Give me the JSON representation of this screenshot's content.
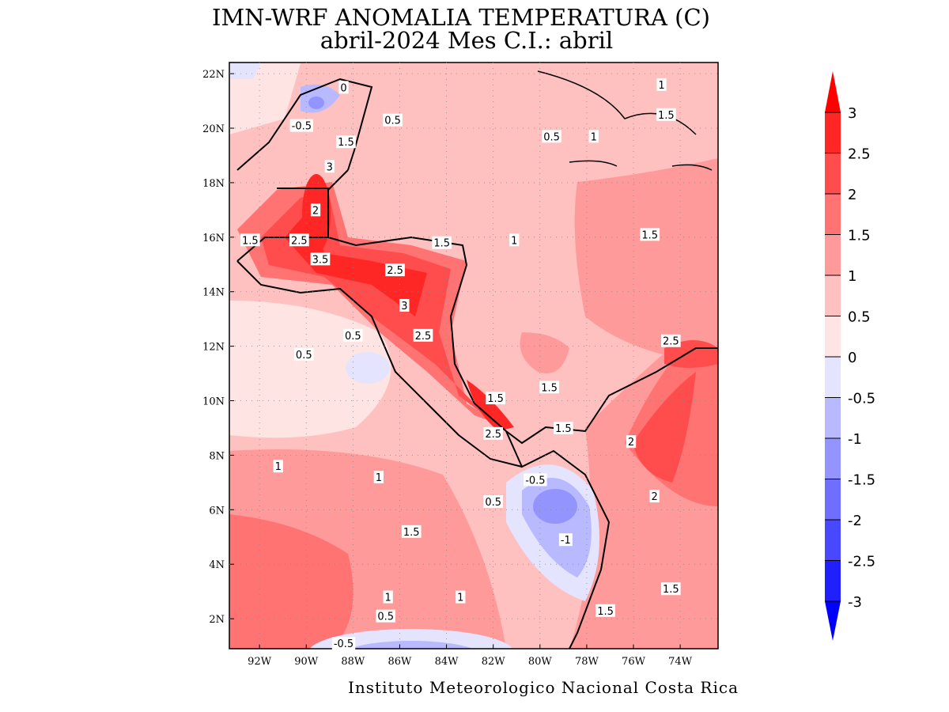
{
  "header": {
    "title": "IMN-WRF  ANOMALIA TEMPERATURA (C)",
    "subtitle": "abril-2024 Mes C.I.: abril"
  },
  "map": {
    "lonlim": [
      -93.29,
      -72.38
    ],
    "latlim": [
      0.9,
      22.41
    ],
    "lat_ticks": [
      {
        "value": 22,
        "label": "22N"
      },
      {
        "value": 20,
        "label": "20N"
      },
      {
        "value": 18,
        "label": "18N"
      },
      {
        "value": 16,
        "label": "16N"
      },
      {
        "value": 14,
        "label": "14N"
      },
      {
        "value": 12,
        "label": "12N"
      },
      {
        "value": 10,
        "label": "10N"
      },
      {
        "value": 8,
        "label": "8N"
      },
      {
        "value": 6,
        "label": "6N"
      },
      {
        "value": 4,
        "label": "4N"
      },
      {
        "value": 2,
        "label": "2N"
      }
    ],
    "lon_ticks": [
      {
        "value": -92,
        "label": "92W"
      },
      {
        "value": -90,
        "label": "90W"
      },
      {
        "value": -88,
        "label": "88W"
      },
      {
        "value": -86,
        "label": "86W"
      },
      {
        "value": -84,
        "label": "84W"
      },
      {
        "value": -82,
        "label": "82W"
      },
      {
        "value": -80,
        "label": "80W"
      },
      {
        "value": -78,
        "label": "78W"
      },
      {
        "value": -76,
        "label": "76W"
      },
      {
        "value": -74,
        "label": "74W"
      }
    ],
    "contour_labels": [
      {
        "value": 0,
        "lon": -88.4,
        "lat": 21.5
      },
      {
        "value": 0.5,
        "lon": -86.3,
        "lat": 20.3
      },
      {
        "value": -0.5,
        "lon": -90.2,
        "lat": 20.1
      },
      {
        "value": 1.5,
        "lon": -88.3,
        "lat": 19.5
      },
      {
        "value": 3,
        "lon": -89,
        "lat": 18.6
      },
      {
        "value": 2,
        "lon": -89.6,
        "lat": 17
      },
      {
        "value": 2.5,
        "lon": -90.3,
        "lat": 15.9
      },
      {
        "value": 1.5,
        "lon": -92.4,
        "lat": 15.9
      },
      {
        "value": 3.5,
        "lon": -89.4,
        "lat": 15.2
      },
      {
        "value": 2.5,
        "lon": -86.2,
        "lat": 14.8
      },
      {
        "value": 3,
        "lon": -85.8,
        "lat": 13.5
      },
      {
        "value": 2.5,
        "lon": -85,
        "lat": 12.4
      },
      {
        "value": 1.5,
        "lon": -84.2,
        "lat": 15.8
      },
      {
        "value": 1,
        "lon": -81.1,
        "lat": 15.9
      },
      {
        "value": 1.5,
        "lon": -75.3,
        "lat": 16.1
      },
      {
        "value": 0.5,
        "lon": -88,
        "lat": 12.4
      },
      {
        "value": 0.5,
        "lon": -90.1,
        "lat": 11.7
      },
      {
        "value": 2.5,
        "lon": -74.4,
        "lat": 12.2
      },
      {
        "value": 1.5,
        "lon": -81.9,
        "lat": 10.1
      },
      {
        "value": 1.5,
        "lon": -79.6,
        "lat": 10.5
      },
      {
        "value": 2.5,
        "lon": -82,
        "lat": 8.8
      },
      {
        "value": 1.5,
        "lon": -79,
        "lat": 9.0
      },
      {
        "value": 2,
        "lon": -76.1,
        "lat": 8.5
      },
      {
        "value": 2,
        "lon": -75.1,
        "lat": 6.5
      },
      {
        "value": 1,
        "lon": -91.2,
        "lat": 7.6
      },
      {
        "value": 1,
        "lon": -86.9,
        "lat": 7.2
      },
      {
        "value": 1.5,
        "lon": -85.5,
        "lat": 5.2
      },
      {
        "value": -0.5,
        "lon": -80.2,
        "lat": 7.1
      },
      {
        "value": -1,
        "lon": -78.9,
        "lat": 4.9
      },
      {
        "value": 0.5,
        "lon": -82,
        "lat": 6.3
      },
      {
        "value": 1,
        "lon": -86.5,
        "lat": 2.8
      },
      {
        "value": 0.5,
        "lon": -86.6,
        "lat": 2.1
      },
      {
        "value": 1,
        "lon": -83.4,
        "lat": 2.8
      },
      {
        "value": -0.5,
        "lon": -88.4,
        "lat": 1.1
      },
      {
        "value": 1.5,
        "lon": -77.2,
        "lat": 2.3
      },
      {
        "value": 1.5,
        "lon": -74.4,
        "lat": 3.1
      },
      {
        "value": 1,
        "lon": -74.8,
        "lat": 21.6
      },
      {
        "value": 1.5,
        "lon": -74.6,
        "lat": 20.5
      },
      {
        "value": 0.5,
        "lon": -79.5,
        "lat": 19.7
      },
      {
        "value": 1,
        "lon": -77.7,
        "lat": 19.7
      }
    ]
  },
  "colorbar": {
    "levels": [
      3,
      2.5,
      2,
      1.5,
      1,
      0.5,
      0,
      -0.5,
      -1,
      -1.5,
      -2,
      -2.5,
      -3
    ],
    "colors": [
      "#ff2626",
      "#ff4c4c",
      "#ff7373",
      "#ff9a9a",
      "#ffc0c0",
      "#ffe4e4",
      "#e4e4ff",
      "#b9b9ff",
      "#9494ff",
      "#6e6eff",
      "#4848ff",
      "#2020ff"
    ],
    "over_color": "#ff0000",
    "under_color": "#0000ff"
  },
  "footer": {
    "credit": "Instituto Meteorologico Nacional Costa Rica"
  }
}
